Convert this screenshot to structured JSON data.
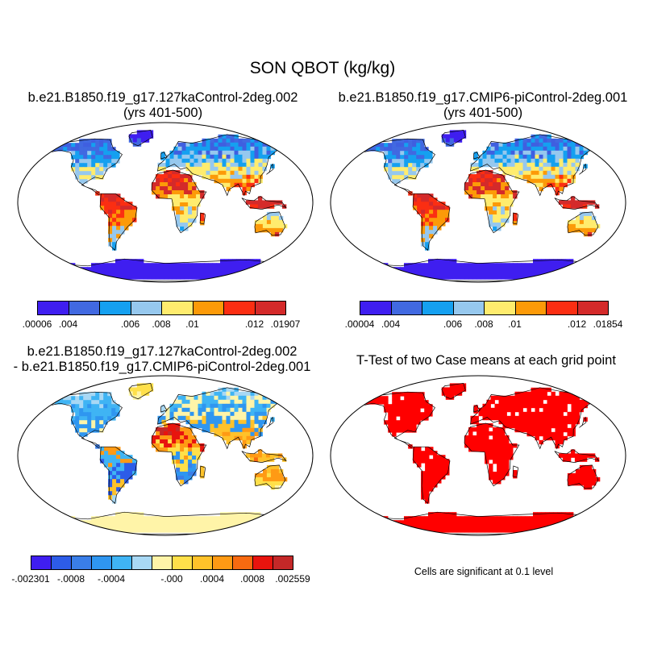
{
  "title": "SON QBOT (kg/kg)",
  "panels": {
    "top_left": {
      "title_line1": "b.e21.B1850.f19_g17.127kaControl-2deg.002",
      "title_line2": "(yrs 401-500)",
      "colorbar": {
        "colors": [
          "#3f1ef0",
          "#4169e1",
          "#15a0f0",
          "#96c8ee",
          "#ffec6e",
          "#fc9a08",
          "#fb2e12",
          "#d42a2a"
        ],
        "labels": [
          ".00006",
          ".004",
          ".006",
          ".008",
          ".01",
          ".012",
          ".01907"
        ]
      }
    },
    "top_right": {
      "title_line1": "b.e21.B1850.f19_g17.CMIP6-piControl-2deg.001",
      "title_line2": "(yrs 401-500)",
      "colorbar": {
        "colors": [
          "#3f1ef0",
          "#4169e1",
          "#15a0f0",
          "#96c8ee",
          "#ffec6e",
          "#fc9a08",
          "#fb2e12",
          "#d42a2a"
        ],
        "labels": [
          ".00004",
          ".004",
          ".006",
          ".008",
          ".01",
          ".012",
          ".01854"
        ]
      }
    },
    "bottom_left": {
      "title_line1": "b.e21.B1850.f19_g17.127kaControl-2deg.002",
      "title_line2": "- b.e21.B1850.f19_g17.CMIP6-piControl-2deg.001",
      "colorbar": {
        "colors": [
          "#3f1ef0",
          "#2d5ce8",
          "#3a7ee8",
          "#2f96f0",
          "#3fb4f4",
          "#a8d8f4",
          "#fff4a8",
          "#ffe04a",
          "#ffc22a",
          "#ff9a14",
          "#f86a10",
          "#e8140e",
          "#c42828"
        ],
        "labels": [
          "-.002301",
          "-.0008",
          "-.0004",
          "-.000",
          ".0004",
          ".0008",
          ".002559"
        ]
      }
    },
    "bottom_right": {
      "title": "T-Test of two Case means at each grid point",
      "note": "Cells are significant at 0.1 level",
      "fill_color": "#ff0000"
    }
  }
}
